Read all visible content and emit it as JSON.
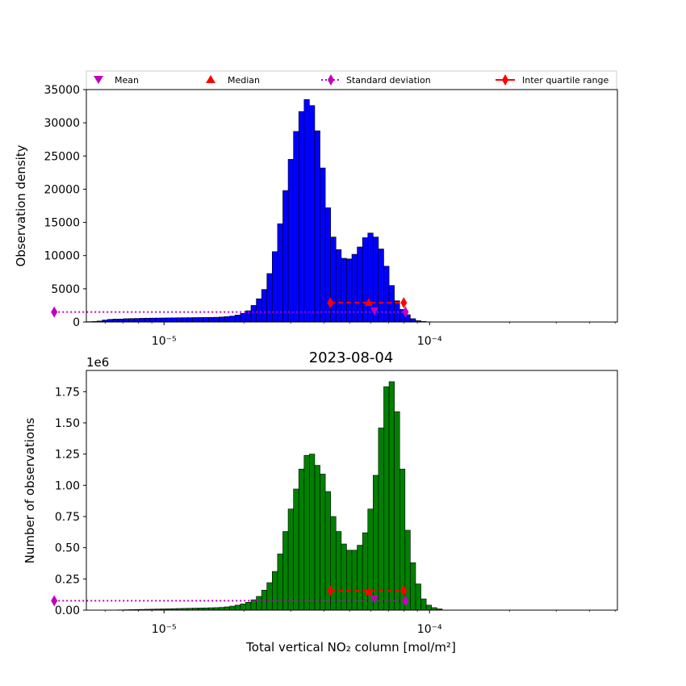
{
  "figure": {
    "xlabel": "Total vertical NO₂ column [mol/m²]",
    "xscale": "log",
    "xlim": [
      5.1e-06,
      0.00051
    ],
    "legend": {
      "placement": "top",
      "entries": [
        {
          "label": "Mean",
          "marker": "triangle-down",
          "color": "#bf00bf"
        },
        {
          "label": "Median",
          "marker": "triangle-up",
          "color": "#ff0000"
        },
        {
          "label": "Standard deviation",
          "marker": "diamond",
          "linestyle": "dotted",
          "color": "#bf00bf"
        },
        {
          "label": "Inter quartile range",
          "marker": "diamond",
          "linestyle": "solid",
          "color": "#ff0000"
        }
      ]
    }
  },
  "chart_data": [
    {
      "type": "bar",
      "title": "",
      "xlabel": "",
      "ylabel": "Observation density",
      "ylim": [
        0,
        35000
      ],
      "yticks": [
        0,
        5000,
        10000,
        15000,
        20000,
        25000,
        30000,
        35000
      ],
      "xticks": [
        {
          "value": 1e-05,
          "label": "10⁻⁵"
        },
        {
          "value": 0.0001,
          "label": "10⁻⁴"
        }
      ],
      "bar_color": "#0000ff",
      "bins": {
        "start": 5.1e-06,
        "ratio": 1.04713,
        "count": 100
      },
      "counts": [
        50,
        80,
        150,
        300,
        400,
        450,
        450,
        500,
        520,
        540,
        560,
        580,
        590,
        600,
        610,
        620,
        630,
        640,
        650,
        660,
        670,
        680,
        690,
        700,
        720,
        760,
        820,
        900,
        1050,
        1300,
        1700,
        2500,
        3500,
        4900,
        7300,
        10600,
        14800,
        19800,
        24500,
        28700,
        31700,
        33500,
        32600,
        28800,
        23200,
        17200,
        12800,
        10900,
        9600,
        9500,
        10200,
        11300,
        12700,
        13400,
        12800,
        11000,
        8400,
        5500,
        3200,
        1900,
        1100,
        500,
        200,
        80,
        30,
        10,
        0,
        0,
        0,
        0,
        0,
        0,
        0,
        0,
        0,
        0,
        0,
        0,
        0,
        0,
        0,
        0,
        0,
        0,
        0,
        0,
        0,
        0,
        0,
        0,
        0,
        0,
        0,
        0,
        0,
        0,
        0,
        0,
        0,
        0
      ],
      "annotations": {
        "mean": {
          "x": 6.2e-05,
          "y": 1600
        },
        "median": {
          "x": 5.9e-05,
          "y": 2900
        },
        "std_range": {
          "x": [
            3.86e-06,
            8.12e-05
          ],
          "y": 1500
        },
        "iqr": {
          "x": [
            4.23e-05,
            8e-05
          ],
          "y": 2900
        }
      }
    },
    {
      "type": "bar",
      "title": "2023-08-04",
      "xlabel": "Total vertical NO₂ column [mol/m²]",
      "ylabel": "Number of observations",
      "offset_label": "1e6",
      "ylim": [
        0,
        1.92
      ],
      "yticks": [
        0,
        0.25,
        0.5,
        0.75,
        1.0,
        1.25,
        1.5,
        1.75
      ],
      "ytick_labels": [
        "0.00",
        "0.25",
        "0.50",
        "0.75",
        "1.00",
        "1.25",
        "1.50",
        "1.75"
      ],
      "xticks": [
        {
          "value": 1e-05,
          "label": "10⁻⁵"
        },
        {
          "value": 0.0001,
          "label": "10⁻⁴"
        }
      ],
      "bar_color": "#008000",
      "bins": {
        "start": 5.1e-06,
        "ratio": 1.04713,
        "count": 100
      },
      "counts": [
        0,
        0,
        0,
        0,
        0,
        0,
        0.002,
        0.003,
        0.004,
        0.005,
        0.006,
        0.007,
        0.008,
        0.009,
        0.01,
        0.011,
        0.012,
        0.013,
        0.014,
        0.015,
        0.016,
        0.017,
        0.018,
        0.019,
        0.02,
        0.022,
        0.026,
        0.032,
        0.04,
        0.05,
        0.063,
        0.083,
        0.11,
        0.16,
        0.22,
        0.31,
        0.45,
        0.63,
        0.81,
        0.97,
        1.13,
        1.24,
        1.25,
        1.16,
        1.09,
        0.95,
        0.75,
        0.63,
        0.53,
        0.48,
        0.48,
        0.52,
        0.62,
        0.81,
        1.08,
        1.46,
        1.79,
        1.83,
        1.59,
        1.13,
        0.64,
        0.38,
        0.21,
        0.09,
        0.04,
        0.02,
        0.01,
        0,
        0,
        0,
        0,
        0,
        0,
        0,
        0,
        0,
        0,
        0,
        0,
        0,
        0,
        0,
        0,
        0,
        0,
        0,
        0,
        0,
        0,
        0,
        0,
        0,
        0,
        0,
        0,
        0,
        0,
        0,
        0,
        0
      ],
      "annotations": {
        "mean": {
          "x": 6.2e-05,
          "y": 0.085
        },
        "median": {
          "x": 5.9e-05,
          "y": 0.145
        },
        "std_range": {
          "x": [
            3.86e-06,
            8.12e-05
          ],
          "y": 0.075
        },
        "iqr": {
          "x": [
            4.23e-05,
            8e-05
          ],
          "y": 0.155
        }
      }
    }
  ]
}
